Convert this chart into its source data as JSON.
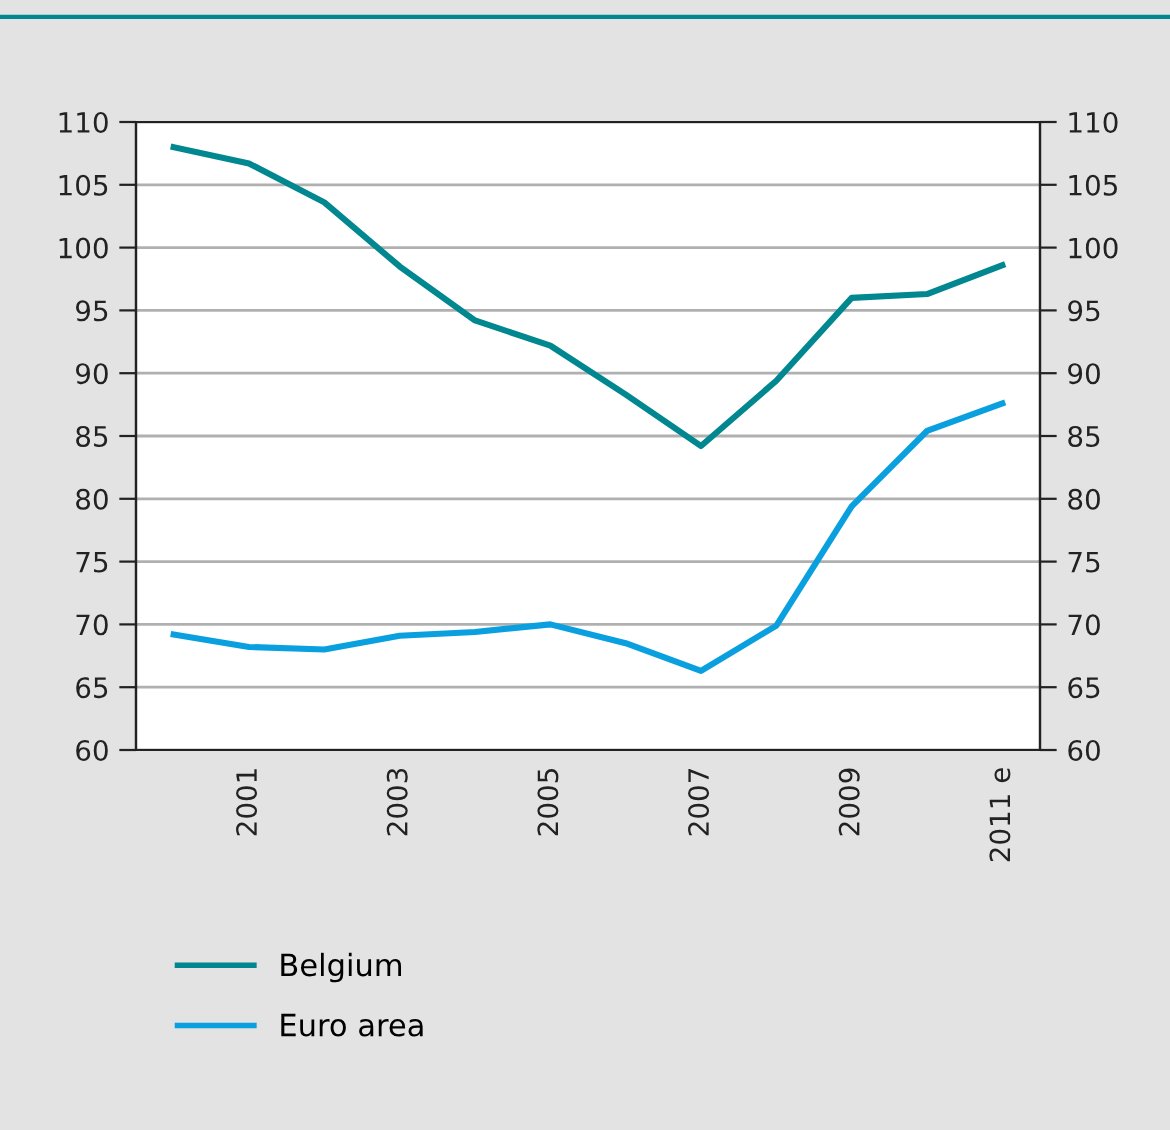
{
  "chart_data": {
    "type": "line",
    "categories": [
      null,
      "2001",
      null,
      "2003",
      null,
      "2005",
      null,
      "2007",
      null,
      "2009",
      null,
      "2011 e"
    ],
    "series": [
      {
        "name": "Belgium",
        "color": "#00878f",
        "values": [
          108.0,
          106.7,
          103.6,
          98.5,
          94.2,
          92.2,
          88.3,
          84.2,
          89.4,
          96.0,
          96.3,
          98.6
        ]
      },
      {
        "name": "Euro area",
        "color": "#0aa0e0",
        "values": [
          69.2,
          68.2,
          68.0,
          69.1,
          69.4,
          70.0,
          68.5,
          66.3,
          69.9,
          79.4,
          85.4,
          87.6
        ]
      }
    ],
    "ylim": [
      60,
      110
    ],
    "yticks": [
      60,
      65,
      70,
      75,
      80,
      85,
      90,
      95,
      100,
      105,
      110
    ],
    "y2lim": [
      60,
      110
    ],
    "y2ticks": [
      60,
      65,
      70,
      75,
      80,
      85,
      90,
      95,
      100,
      105,
      110
    ],
    "grid": "y",
    "legend": "bottom",
    "marker": "none",
    "line_style": "solid"
  }
}
